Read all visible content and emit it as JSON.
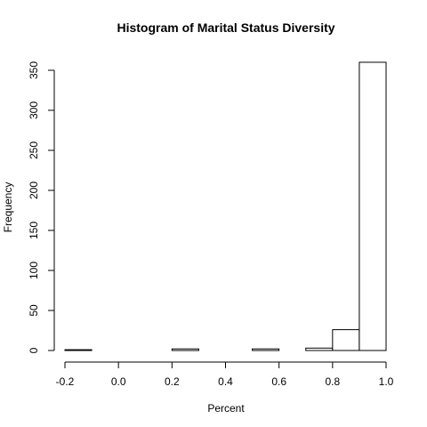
{
  "chart_data": {
    "type": "bar",
    "title": "Histogram of Marital Status Diversity",
    "xlabel": "Percent",
    "ylabel": "Frequency",
    "bins": [
      {
        "start": -0.2,
        "end": -0.1,
        "count": 1
      },
      {
        "start": -0.1,
        "end": 0.0,
        "count": 0
      },
      {
        "start": 0.0,
        "end": 0.1,
        "count": 0
      },
      {
        "start": 0.1,
        "end": 0.2,
        "count": 0
      },
      {
        "start": 0.2,
        "end": 0.3,
        "count": 2
      },
      {
        "start": 0.3,
        "end": 0.4,
        "count": 0
      },
      {
        "start": 0.4,
        "end": 0.5,
        "count": 0
      },
      {
        "start": 0.5,
        "end": 0.6,
        "count": 2
      },
      {
        "start": 0.6,
        "end": 0.7,
        "count": 0
      },
      {
        "start": 0.7,
        "end": 0.8,
        "count": 3
      },
      {
        "start": 0.8,
        "end": 0.9,
        "count": 26
      },
      {
        "start": 0.9,
        "end": 1.0,
        "count": 360
      }
    ],
    "x_ticks": [
      "-0.2",
      "0.0",
      "0.2",
      "0.4",
      "0.6",
      "0.8",
      "1.0"
    ],
    "y_ticks": [
      "0",
      "50",
      "100",
      "150",
      "200",
      "250",
      "300",
      "350"
    ],
    "xlim": [
      -0.2,
      1.0
    ],
    "ylim": [
      0,
      360
    ],
    "grid": false,
    "bar_fill": "#ffffff",
    "bar_stroke": "#000000"
  }
}
